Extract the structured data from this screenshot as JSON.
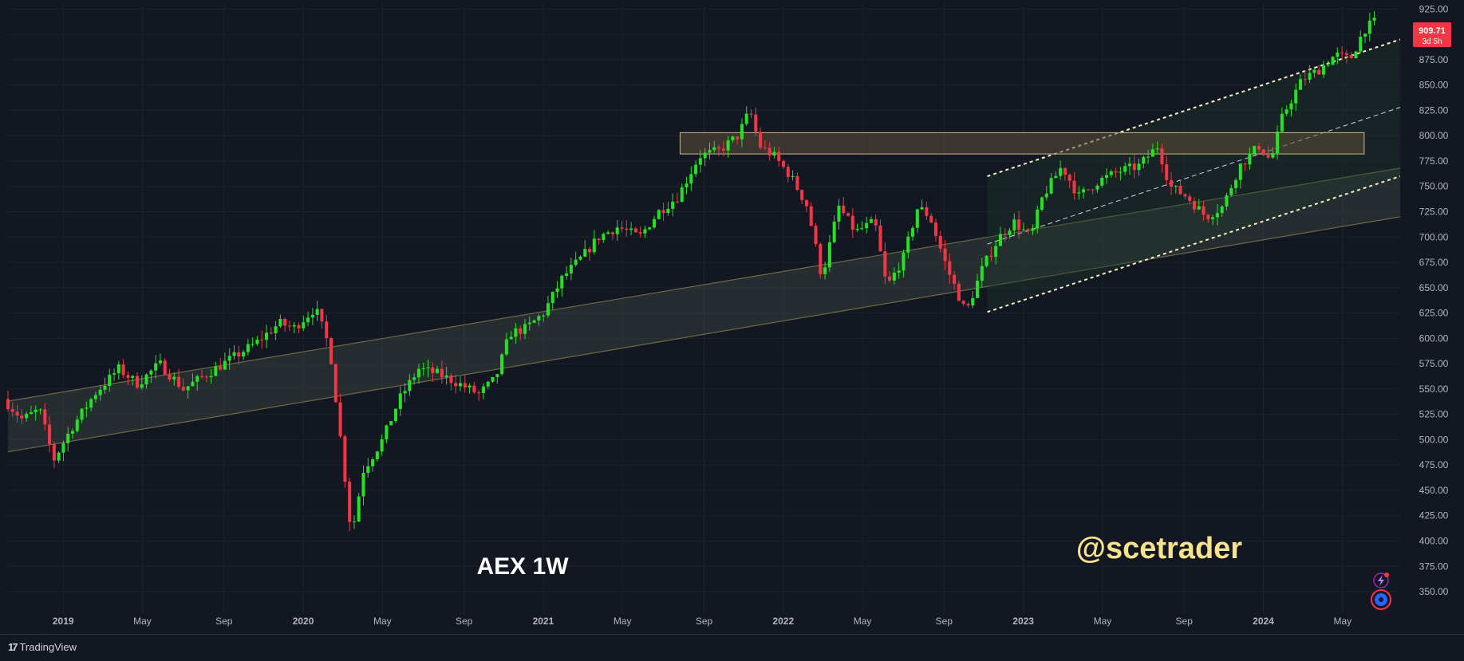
{
  "chart_data": {
    "type": "candlestick",
    "symbol_label": "AEX 1W",
    "watermark": "@scetrader",
    "last_price": "909.71",
    "countdown": "3d 5h",
    "y_ticks": [
      350,
      375,
      400,
      425,
      450,
      475,
      500,
      525,
      550,
      575,
      600,
      625,
      650,
      675,
      700,
      725,
      750,
      775,
      800,
      825,
      850,
      875,
      900,
      925
    ],
    "y_tick_labels": [
      "350.00",
      "375.00",
      "400.00",
      "425.00",
      "450.00",
      "475.00",
      "500.00",
      "525.00",
      "550.00",
      "575.00",
      "600.00",
      "625.00",
      "650.00",
      "675.00",
      "700.00",
      "725.00",
      "750.00",
      "775.00",
      "800.00",
      "825.00",
      "850.00",
      "875.00",
      "900.00",
      "925.00"
    ],
    "ylim": [
      328,
      930
    ],
    "x_ticks": [
      {
        "label": "2019",
        "t": 2019.0,
        "bold": true
      },
      {
        "label": "May",
        "t": 2019.33,
        "bold": false
      },
      {
        "label": "Sep",
        "t": 2019.67,
        "bold": false
      },
      {
        "label": "2020",
        "t": 2020.0,
        "bold": true
      },
      {
        "label": "May",
        "t": 2020.33,
        "bold": false
      },
      {
        "label": "Sep",
        "t": 2020.67,
        "bold": false
      },
      {
        "label": "2021",
        "t": 2021.0,
        "bold": true
      },
      {
        "label": "May",
        "t": 2021.33,
        "bold": false
      },
      {
        "label": "Sep",
        "t": 2021.67,
        "bold": false
      },
      {
        "label": "2022",
        "t": 2022.0,
        "bold": true
      },
      {
        "label": "May",
        "t": 2022.33,
        "bold": false
      },
      {
        "label": "Sep",
        "t": 2022.67,
        "bold": false
      },
      {
        "label": "2023",
        "t": 2023.0,
        "bold": true
      },
      {
        "label": "May",
        "t": 2023.33,
        "bold": false
      },
      {
        "label": "Sep",
        "t": 2023.67,
        "bold": false
      },
      {
        "label": "2024",
        "t": 2024.0,
        "bold": true
      },
      {
        "label": "May",
        "t": 2024.33,
        "bold": false
      }
    ],
    "xlim": [
      2018.77,
      2024.57
    ],
    "price_path": [
      [
        2018.77,
        540
      ],
      [
        2018.85,
        520
      ],
      [
        2018.92,
        530
      ],
      [
        2018.98,
        480
      ],
      [
        2019.05,
        510
      ],
      [
        2019.15,
        545
      ],
      [
        2019.25,
        570
      ],
      [
        2019.33,
        555
      ],
      [
        2019.42,
        575
      ],
      [
        2019.52,
        550
      ],
      [
        2019.62,
        565
      ],
      [
        2019.72,
        580
      ],
      [
        2019.82,
        595
      ],
      [
        2019.92,
        615
      ],
      [
        2019.98,
        610
      ],
      [
        2020.07,
        630
      ],
      [
        2020.13,
        590
      ],
      [
        2020.18,
        490
      ],
      [
        2020.22,
        405
      ],
      [
        2020.27,
        470
      ],
      [
        2020.35,
        500
      ],
      [
        2020.42,
        540
      ],
      [
        2020.5,
        570
      ],
      [
        2020.58,
        565
      ],
      [
        2020.67,
        555
      ],
      [
        2020.75,
        545
      ],
      [
        2020.82,
        560
      ],
      [
        2020.88,
        605
      ],
      [
        2020.95,
        610
      ],
      [
        2021.02,
        625
      ],
      [
        2021.1,
        660
      ],
      [
        2021.18,
        680
      ],
      [
        2021.25,
        700
      ],
      [
        2021.33,
        710
      ],
      [
        2021.42,
        700
      ],
      [
        2021.5,
        725
      ],
      [
        2021.58,
        740
      ],
      [
        2021.67,
        780
      ],
      [
        2021.75,
        785
      ],
      [
        2021.83,
        800
      ],
      [
        2021.88,
        825
      ],
      [
        2021.92,
        790
      ],
      [
        2021.98,
        780
      ],
      [
        2022.05,
        760
      ],
      [
        2022.12,
        730
      ],
      [
        2022.18,
        660
      ],
      [
        2022.25,
        730
      ],
      [
        2022.32,
        705
      ],
      [
        2022.4,
        715
      ],
      [
        2022.45,
        650
      ],
      [
        2022.52,
        680
      ],
      [
        2022.58,
        730
      ],
      [
        2022.63,
        720
      ],
      [
        2022.7,
        670
      ],
      [
        2022.78,
        625
      ],
      [
        2022.85,
        670
      ],
      [
        2022.92,
        700
      ],
      [
        2022.98,
        715
      ],
      [
        2023.05,
        700
      ],
      [
        2023.1,
        740
      ],
      [
        2023.18,
        770
      ],
      [
        2023.25,
        740
      ],
      [
        2023.33,
        755
      ],
      [
        2023.42,
        765
      ],
      [
        2023.5,
        770
      ],
      [
        2023.58,
        790
      ],
      [
        2023.63,
        750
      ],
      [
        2023.7,
        740
      ],
      [
        2023.78,
        720
      ],
      [
        2023.85,
        730
      ],
      [
        2023.92,
        770
      ],
      [
        2024.0,
        790
      ],
      [
        2024.05,
        775
      ],
      [
        2024.1,
        820
      ],
      [
        2024.18,
        855
      ],
      [
        2024.25,
        865
      ],
      [
        2024.32,
        880
      ],
      [
        2024.38,
        875
      ],
      [
        2024.44,
        905
      ],
      [
        2024.48,
        912
      ]
    ],
    "resistance_zone": {
      "t0": 2021.57,
      "t1": 2024.42,
      "y_low": 782,
      "y_high": 803
    },
    "long_channel": {
      "t0": 2018.77,
      "t1": 2024.57,
      "upper_start": 538,
      "upper_end": 768,
      "lower_start": 488,
      "lower_end": 720
    },
    "short_channel": {
      "t0": 2022.85,
      "t1": 2024.57,
      "upper_start": 760,
      "upper_end": 895,
      "mid_start": 693,
      "mid_end": 828,
      "lower_start": 626,
      "lower_end": 760
    },
    "colors": {
      "background": "#131722",
      "grid": "#1e222d",
      "up": "#26e026",
      "down": "#f23645",
      "axis_text": "#b2b5be",
      "price_badge": "#f23645",
      "zone_fill": "#5c4f3a",
      "channel_fill": "#3f4a45",
      "watermark": "#f7e38d",
      "label": "#ffffff"
    }
  },
  "footer": {
    "brand": "TradingView"
  },
  "icons": [
    "lightning-icon",
    "settings-gear-icon"
  ]
}
